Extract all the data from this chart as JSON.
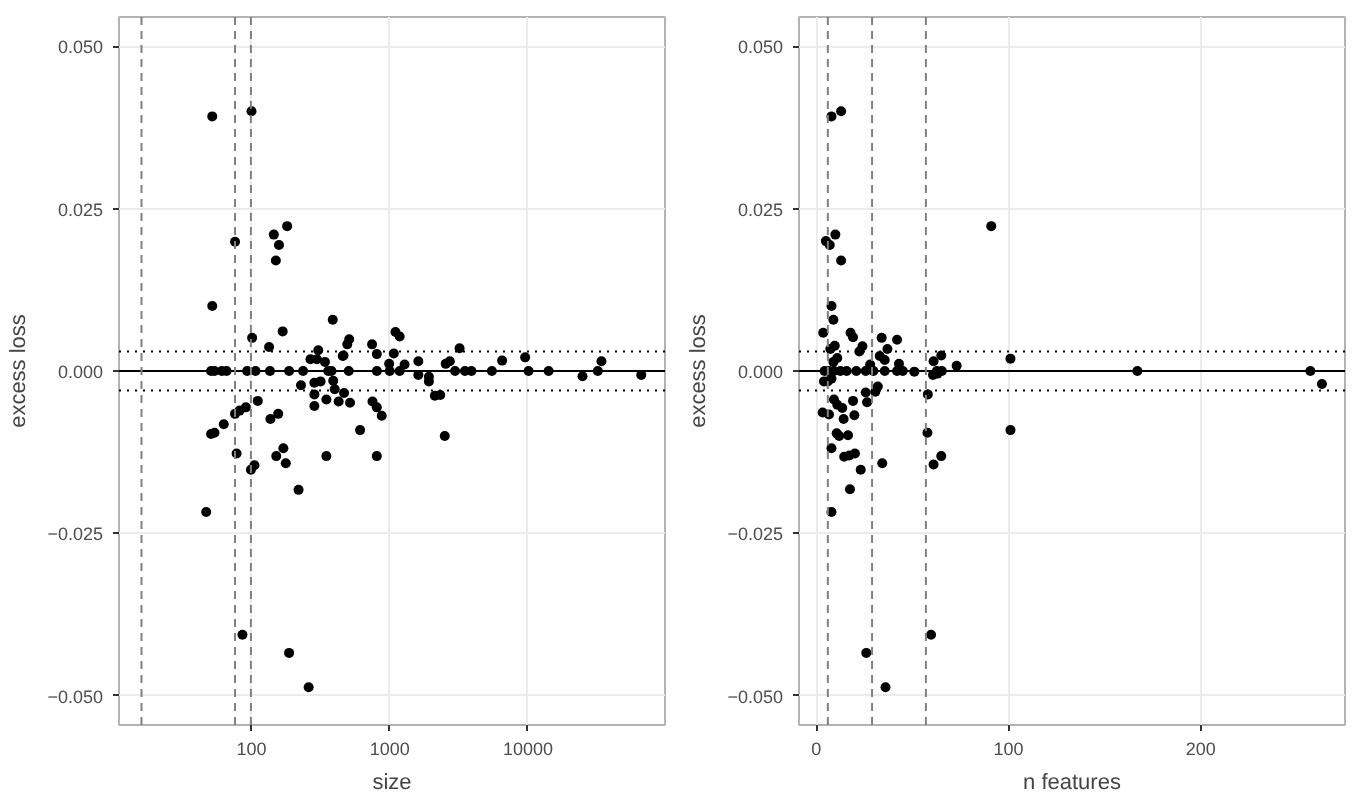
{
  "chart_data": [
    {
      "type": "scatter",
      "xlabel": "size",
      "ylabel": "excess loss",
      "log": "x",
      "grid": true,
      "marker": "circle",
      "xlim": [
        11,
        98000
      ],
      "ylim": [
        -0.0545,
        0.0545
      ],
      "xticks": [
        100,
        1000,
        10000
      ],
      "yticks": [
        {
          "value": -0.05,
          "label": "−0.050"
        },
        {
          "value": -0.025,
          "label": "−0.025"
        },
        {
          "value": 0,
          "label": "0.000"
        },
        {
          "value": 0.025,
          "label": "0.025"
        },
        {
          "value": 0.05,
          "label": "0.050"
        }
      ],
      "ref_lines": [
        {
          "axis": "y",
          "value": 0,
          "color": "#000000",
          "line_style": "solid"
        },
        {
          "axis": "y",
          "value": 0.003,
          "color": "#000000",
          "line_style": "dotted"
        },
        {
          "axis": "y",
          "value": -0.003,
          "color": "#000000",
          "line_style": "dotted"
        },
        {
          "axis": "x",
          "value": 16,
          "color": "#808080",
          "line_style": "dashed"
        },
        {
          "axis": "x",
          "value": 76,
          "color": "#808080",
          "line_style": "dashed"
        },
        {
          "axis": "x",
          "value": 99,
          "color": "#808080",
          "line_style": "dashed"
        }
      ],
      "series": [
        {
          "color": "#000000",
          "x": [
            52,
            100,
            76,
            52,
            145,
            181,
            158,
            150,
            101,
            168,
            387,
            134,
            1100,
            1180,
            509,
            493,
            463,
            745,
            806,
            1070,
            990,
            1280,
            1610,
            3200,
            2720,
            2540,
            6500,
            9540,
            34000,
            267,
            297,
            340,
            304,
            51,
            54,
            61,
            66,
            93,
            107,
            136,
            187,
            236,
            359,
            379,
            505,
            807,
            1000,
            1180,
            2970,
            3500,
            3900,
            5480,
            10100,
            14100,
            24800,
            32000,
            66000,
            228,
            285,
            316,
            285,
            285,
            348,
            390,
            400,
            427,
            467,
            516,
            457,
            750,
            806,
            875,
            610,
            348,
            806,
            1920,
            1920,
            1610,
            2120,
            2320,
            2500,
            111,
            91,
            82,
            76,
            63,
            54,
            51,
            137,
            156,
            78,
            105,
            99,
            170,
            151,
            177,
            219,
            47,
            86,
            187,
            259
          ],
          "values": [
            0.0392,
            0.04,
            0.0199,
            0.01,
            0.021,
            0.0223,
            0.0194,
            0.017,
            0.0051,
            0.0061,
            0.0079,
            0.0037,
            0.006,
            0.0053,
            0.0049,
            0.0041,
            0.0024,
            0.0041,
            0.0026,
            0.0027,
            0.0011,
            0.001,
            0.0015,
            0.0035,
            0.0015,
            0.0011,
            0.0016,
            0.0021,
            0.0015,
            0.0018,
            0.0018,
            0.0014,
            0.0032,
            0,
            0,
            0,
            0,
            0,
            0,
            0,
            0,
            0,
            0,
            0,
            0,
            0,
            0,
            0,
            0,
            0,
            0,
            0,
            0,
            0,
            -0.0008,
            0,
            -0.0006,
            -0.0022,
            -0.0018,
            -0.0016,
            -0.0036,
            -0.0054,
            -0.0044,
            -0.0015,
            -0.0028,
            -0.0047,
            -0.0034,
            -0.0049,
            0.0023,
            -0.0047,
            -0.0056,
            -0.0069,
            -0.0091,
            -0.0131,
            -0.0131,
            -0.0009,
            -0.0016,
            -0.0006,
            -0.0038,
            -0.0037,
            -0.01,
            -0.0046,
            -0.0056,
            -0.0061,
            -0.0066,
            -0.0082,
            -0.0095,
            -0.0097,
            -0.0074,
            -0.0066,
            -0.0127,
            -0.0145,
            -0.0152,
            -0.0119,
            -0.0131,
            -0.0142,
            -0.0183,
            -0.0217,
            -0.0406,
            -0.0434,
            -0.0487
          ]
        }
      ]
    },
    {
      "type": "scatter",
      "xlabel": "n features",
      "ylabel": "excess loss",
      "grid": true,
      "marker": "circle",
      "xlim": [
        -9,
        275
      ],
      "ylim": [
        -0.0545,
        0.0545
      ],
      "xticks": [
        0,
        100,
        200
      ],
      "yticks": [
        {
          "value": -0.05,
          "label": "−0.050"
        },
        {
          "value": -0.025,
          "label": "−0.025"
        },
        {
          "value": 0,
          "label": "0.000"
        },
        {
          "value": 0.025,
          "label": "0.025"
        },
        {
          "value": 0.05,
          "label": "0.050"
        }
      ],
      "ref_lines": [
        {
          "axis": "y",
          "value": 0,
          "color": "#000000",
          "line_style": "solid"
        },
        {
          "axis": "y",
          "value": 0.003,
          "color": "#000000",
          "line_style": "dotted"
        },
        {
          "axis": "y",
          "value": -0.003,
          "color": "#000000",
          "line_style": "dotted"
        },
        {
          "axis": "x",
          "value": 6,
          "color": "#808080",
          "line_style": "dashed"
        },
        {
          "axis": "x",
          "value": 29,
          "color": "#808080",
          "line_style": "dashed"
        },
        {
          "axis": "x",
          "value": 57,
          "color": "#808080",
          "line_style": "dashed"
        }
      ],
      "series": [
        {
          "color": "#000000",
          "x": [
            7.9,
            12.9,
            5,
            7,
            9.9,
            12.9,
            91,
            3.6,
            7.9,
            8.9,
            17.8,
            19.1,
            34,
            42,
            37,
            65,
            61,
            73,
            101,
            24,
            22.4,
            9.6,
            7.3,
            10.9,
            8.9,
            28,
            33,
            35.6,
            43,
            51,
            167,
            257,
            263,
            4.3,
            6.6,
            9.2,
            12.5,
            15.8,
            20.8,
            25.7,
            29.7,
            35.6,
            42,
            45,
            62.7,
            65.3,
            4,
            5.9,
            7.9,
            3.3,
            6.6,
            9.2,
            10.9,
            13.5,
            14.2,
            10.6,
            11.9,
            7.9,
            16.5,
            19.8,
            19.1,
            14.5,
            17.2,
            20.1,
            23.1,
            17.5,
            7.9,
            26.4,
            25.7,
            30.7,
            32,
            34.3,
            58,
            57.8,
            61,
            65,
            60.7,
            63,
            101,
            26,
            59.7,
            36
          ],
          "values": [
            0.0392,
            0.04,
            0.02,
            0.0194,
            0.021,
            0.017,
            0.0223,
            0.0059,
            0.01,
            0.0079,
            0.0059,
            0.0052,
            0.0051,
            0.0048,
            0.0034,
            0.0024,
            0.0015,
            0.0008,
            0.0019,
            0.0038,
            0.003,
            0.0039,
            0.0034,
            0.002,
            0.0014,
            0.001,
            0.0023,
            0.0017,
            0.0011,
            -0.0001,
            0,
            0,
            -0.002,
            0,
            0,
            0,
            0,
            0,
            0,
            0,
            0,
            0,
            0,
            0,
            0,
            0,
            -0.0016,
            -0.0016,
            -0.0012,
            -0.0064,
            -0.0067,
            -0.0044,
            -0.0052,
            -0.0057,
            -0.0074,
            -0.0096,
            -0.01,
            -0.0119,
            -0.0099,
            -0.0068,
            -0.0046,
            -0.0132,
            -0.013,
            -0.0127,
            -0.0152,
            -0.0182,
            -0.0217,
            -0.0048,
            -0.0033,
            -0.0032,
            -0.0024,
            -0.0142,
            -0.0036,
            -0.0095,
            -0.0144,
            -0.0131,
            -0.0006,
            -0.0004,
            -0.0091,
            -0.0434,
            -0.0406,
            -0.0487
          ]
        }
      ]
    }
  ]
}
